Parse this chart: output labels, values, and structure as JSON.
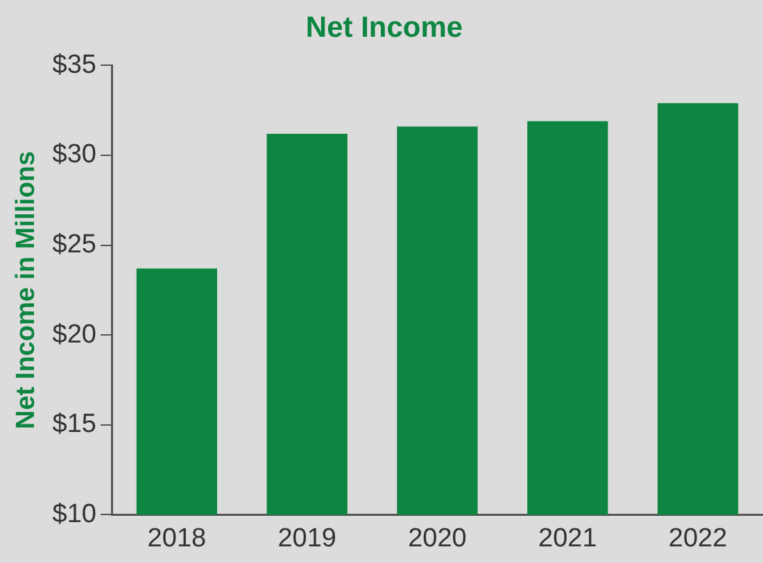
{
  "chart_data": {
    "type": "bar",
    "title": "Net Income",
    "ylabel": "Net Income in Millions",
    "categories": [
      "2018",
      "2019",
      "2020",
      "2021",
      "2022"
    ],
    "values": [
      23.7,
      31.2,
      31.6,
      31.9,
      32.9
    ],
    "color": "#0e8641",
    "ylim": [
      10,
      35
    ],
    "yticks": [
      {
        "value": 10,
        "label": "$10"
      },
      {
        "value": 15,
        "label": "$15"
      },
      {
        "value": 20,
        "label": "$20"
      },
      {
        "value": 25,
        "label": "$25"
      },
      {
        "value": 30,
        "label": "$30"
      },
      {
        "value": 35,
        "label": "$35"
      }
    ],
    "grid": false,
    "legend": false
  }
}
